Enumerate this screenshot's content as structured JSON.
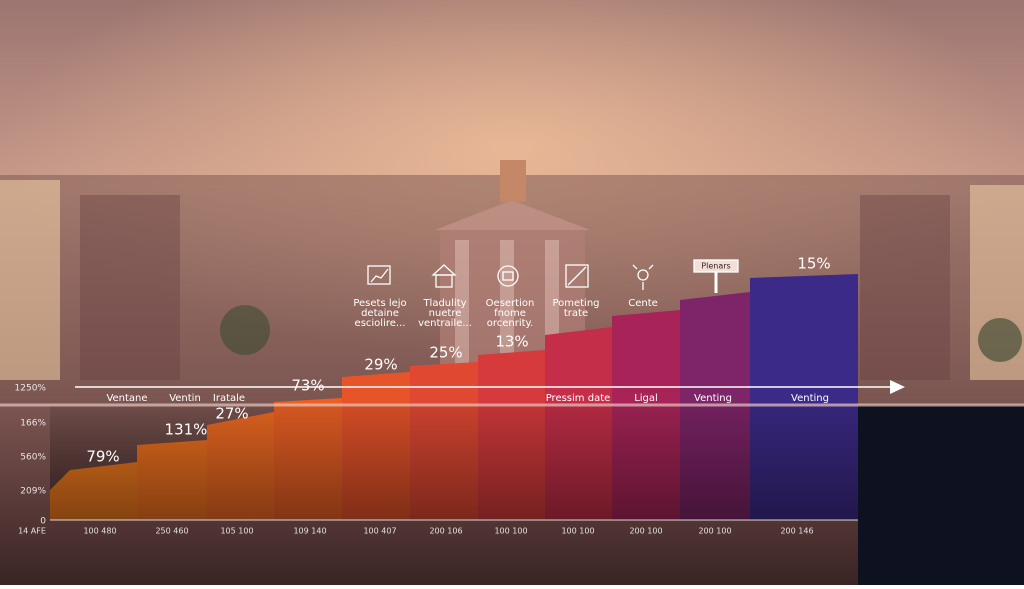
{
  "icon_captions": [
    {
      "lines": [
        "Pesets lejo",
        "detaine",
        "esciolire..."
      ]
    },
    {
      "lines": [
        "Tladulity",
        "nuetre",
        "ventraile..."
      ]
    },
    {
      "lines": [
        "Oesertion",
        "fnome",
        "orcenrity."
      ]
    },
    {
      "lines": [
        "Pometing",
        "trate"
      ]
    },
    {
      "lines": [
        "Cente"
      ]
    }
  ],
  "sign_label": "Plenars",
  "percent_labels": [
    "79%",
    "131%",
    "27%",
    "73%",
    "29%",
    "25%",
    "13%",
    "15%"
  ],
  "row_labels": [
    "Ventane",
    "Ventin",
    "Iratale",
    "Pressim date",
    "Ligal",
    "Venting",
    "Venting"
  ],
  "y_labels": [
    "1250%",
    "166%",
    "560%",
    "209%",
    "0"
  ],
  "x_labels": [
    "14 AFE",
    "100 480",
    "250 460",
    "105 100",
    "109 140",
    "100 407",
    "200 106",
    "100 100",
    "100 100",
    "200 100",
    "200 100",
    "200 146"
  ]
}
